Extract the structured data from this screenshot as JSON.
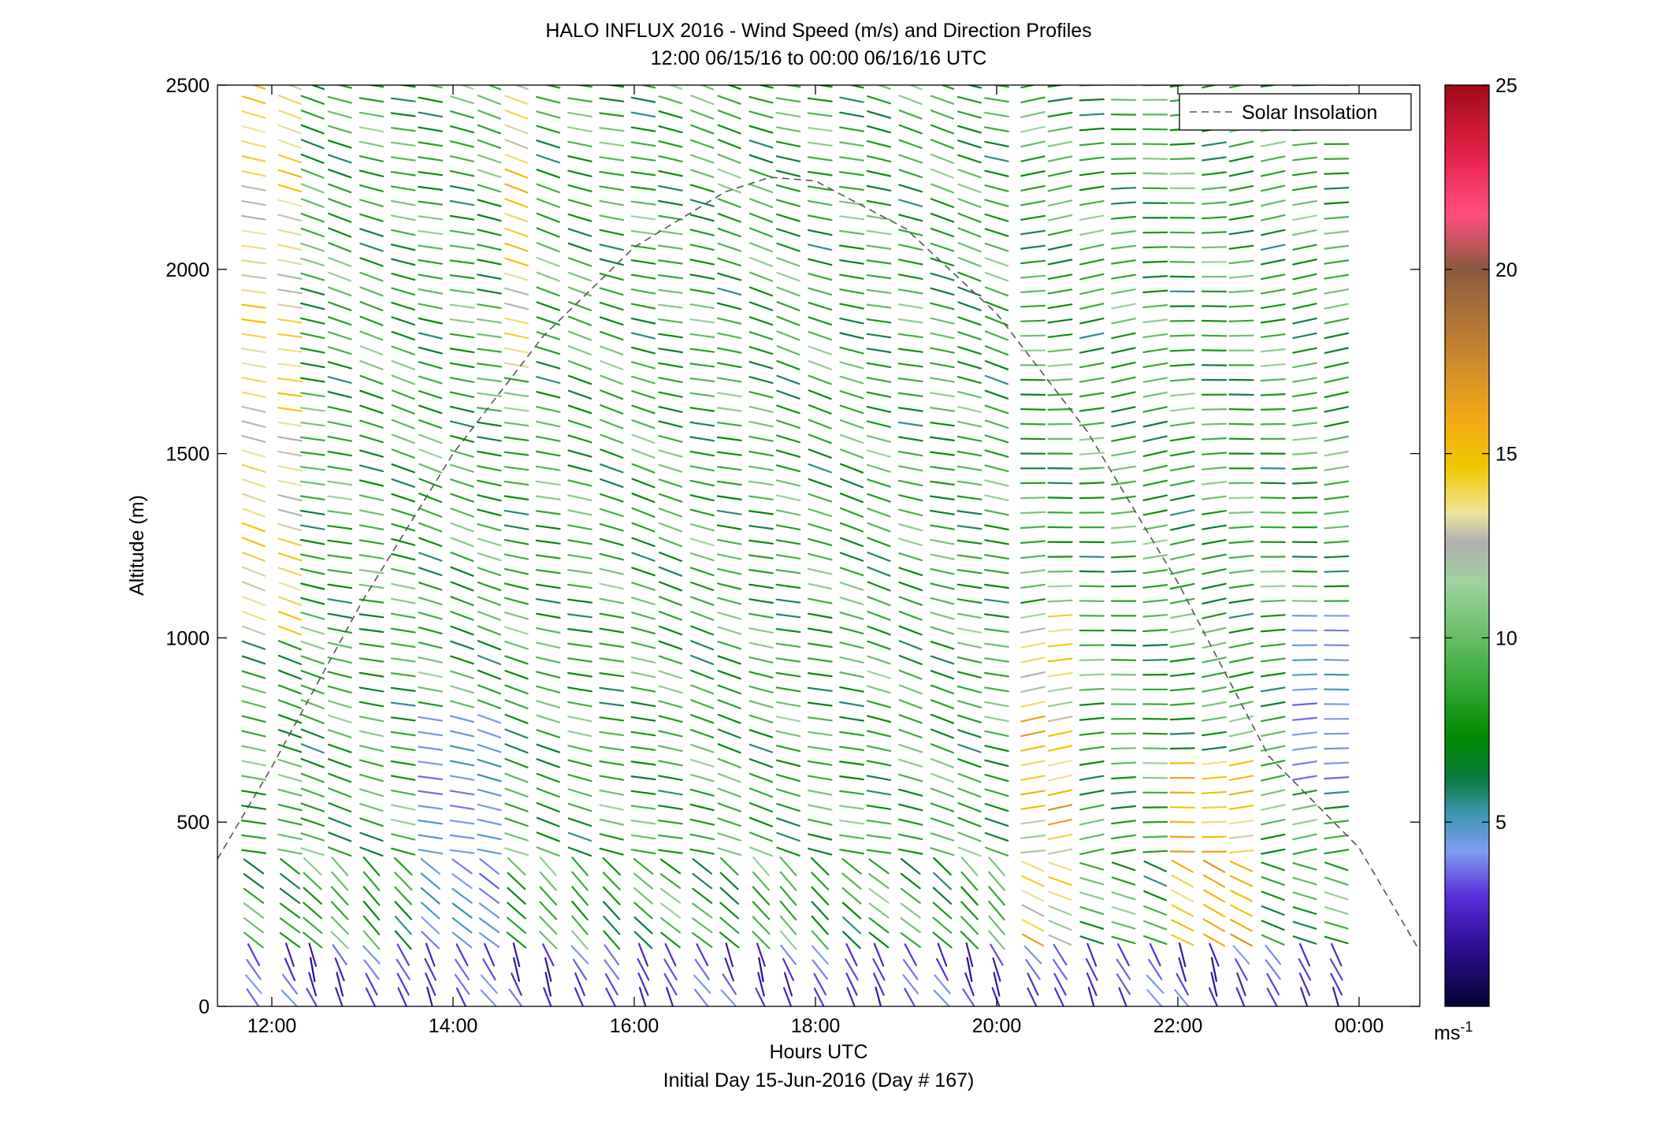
{
  "chart_data": {
    "type": "scatter",
    "title": "HALO INFLUX 2016 - Wind Speed (m/s) and Direction Profiles",
    "subtitle": "12:00 06/15/16 to 00:00 06/16/16  UTC",
    "xlabel": "Hours UTC",
    "xlabel2": "Initial Day 15-Jun-2016 (Day # 167)",
    "ylabel": "Altitude (m)",
    "x_ticks": [
      "12:00",
      "14:00",
      "16:00",
      "18:00",
      "20:00",
      "22:00",
      "00:00"
    ],
    "x_tick_values": [
      12,
      14,
      16,
      18,
      20,
      22,
      24
    ],
    "y_ticks": [
      "0",
      "500",
      "1000",
      "1500",
      "2000",
      "2500"
    ],
    "y_tick_values": [
      0,
      500,
      1000,
      1500,
      2000,
      2500
    ],
    "xlim": [
      11.4,
      24.67
    ],
    "ylim": [
      0,
      2500
    ],
    "grid": false,
    "legend": {
      "location": "top-right",
      "entries": [
        "Solar Insolation"
      ]
    },
    "colorbar": {
      "label": "ms-1",
      "ticks": [
        "5",
        "10",
        "15",
        "20",
        "25"
      ],
      "tick_values": [
        5,
        10,
        15,
        20,
        25
      ],
      "range": [
        0,
        25
      ],
      "stops": [
        {
          "v": 0,
          "c": "#050530"
        },
        {
          "v": 1.5,
          "c": "#2a0a8c"
        },
        {
          "v": 3,
          "c": "#5a2ed8"
        },
        {
          "v": 4.2,
          "c": "#7f9cf0"
        },
        {
          "v": 5.2,
          "c": "#3e97b5"
        },
        {
          "v": 6.2,
          "c": "#0a7a3c"
        },
        {
          "v": 7.3,
          "c": "#008a00"
        },
        {
          "v": 9,
          "c": "#3fae3f"
        },
        {
          "v": 11.5,
          "c": "#9fd39f"
        },
        {
          "v": 12.6,
          "c": "#b0b0b0"
        },
        {
          "v": 13.4,
          "c": "#f0e49a"
        },
        {
          "v": 14.6,
          "c": "#f0c800"
        },
        {
          "v": 16,
          "c": "#f0a818"
        },
        {
          "v": 18,
          "c": "#c08032"
        },
        {
          "v": 20,
          "c": "#8a5a3f"
        },
        {
          "v": 21.5,
          "c": "#ff4f7f"
        },
        {
          "v": 23,
          "c": "#e8244c"
        },
        {
          "v": 25,
          "c": "#a00a18"
        }
      ]
    },
    "series": [
      {
        "name": "Solar Insolation",
        "style": "dashed",
        "color": "#555555",
        "x": [
          11.4,
          12.0,
          13.0,
          14.0,
          15.0,
          16.0,
          17.0,
          17.5,
          18.0,
          19.0,
          20.0,
          21.0,
          22.0,
          23.0,
          24.0,
          24.67
        ],
        "y": [
          400,
          650,
          1100,
          1500,
          1820,
          2060,
          2210,
          2250,
          2240,
          2110,
          1880,
          1560,
          1150,
          680,
          430,
          150
        ]
      }
    ],
    "wind_profiles": {
      "x_hours": [
        11.8,
        12.2,
        12.45,
        12.75,
        13.1,
        13.45,
        13.75,
        14.1,
        14.4,
        14.7,
        15.05,
        15.4,
        15.75,
        16.1,
        16.4,
        16.75,
        17.05,
        17.4,
        17.7,
        18.05,
        18.4,
        18.7,
        19.05,
        19.4,
        19.7,
        20.0,
        20.4,
        20.7,
        21.05,
        21.4,
        21.75,
        22.05,
        22.4,
        22.7,
        23.05,
        23.4,
        23.75
      ],
      "altitude_step_m": 40,
      "altitude_range_m": [
        0,
        2500
      ]
    }
  }
}
